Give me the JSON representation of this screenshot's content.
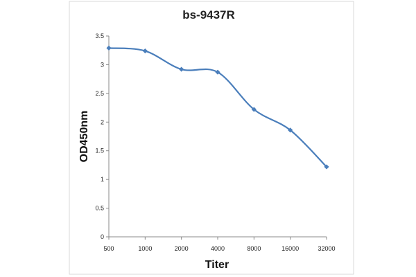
{
  "chart_data": {
    "type": "line",
    "title": "bs-9437R",
    "xlabel": "Titer",
    "ylabel": "OD450nm",
    "categories": [
      "500",
      "1000",
      "2000",
      "4000",
      "8000",
      "16000",
      "32000"
    ],
    "series": [
      {
        "values": [
          3.29,
          3.24,
          2.92,
          2.87,
          2.22,
          1.86,
          1.22
        ]
      }
    ],
    "ylim": [
      0,
      3.5
    ],
    "yticks": [
      "0",
      "0.5",
      "1",
      "1.5",
      "2",
      "2.5",
      "3",
      "3.5"
    ],
    "grid": false,
    "legend": "none",
    "smooth": true,
    "marker": "diamond",
    "colors": {
      "series": "#4a7ebb",
      "axis": "#888888",
      "frame": "#d9d9d9"
    }
  }
}
